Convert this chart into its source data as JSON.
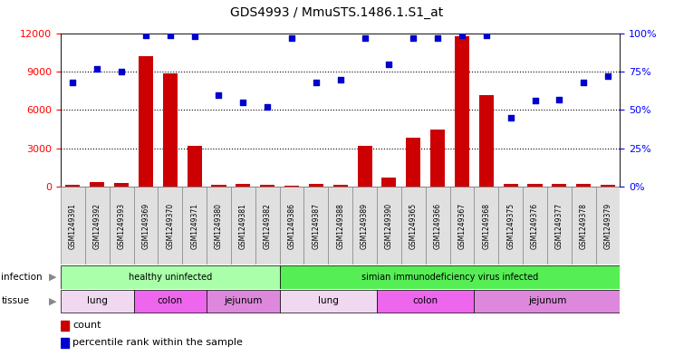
{
  "title": "GDS4993 / MmuSTS.1486.1.S1_at",
  "samples": [
    "GSM1249391",
    "GSM1249392",
    "GSM1249393",
    "GSM1249369",
    "GSM1249370",
    "GSM1249371",
    "GSM1249380",
    "GSM1249381",
    "GSM1249382",
    "GSM1249386",
    "GSM1249387",
    "GSM1249388",
    "GSM1249389",
    "GSM1249390",
    "GSM1249365",
    "GSM1249366",
    "GSM1249367",
    "GSM1249368",
    "GSM1249375",
    "GSM1249376",
    "GSM1249377",
    "GSM1249378",
    "GSM1249379"
  ],
  "counts": [
    120,
    350,
    250,
    10200,
    8900,
    3200,
    150,
    200,
    120,
    100,
    200,
    150,
    3200,
    700,
    3800,
    4500,
    11800,
    7200,
    200,
    200,
    200,
    200,
    150
  ],
  "percentiles": [
    68,
    77,
    75,
    99,
    99,
    98,
    60,
    55,
    52,
    97,
    68,
    70,
    97,
    80,
    97,
    97,
    99,
    99,
    45,
    56,
    57,
    68,
    72
  ],
  "inf_groups": [
    {
      "label": "healthy uninfected",
      "start": 0,
      "end": 9,
      "color": "#aaffaa"
    },
    {
      "label": "simian immunodeficiency virus infected",
      "start": 9,
      "end": 23,
      "color": "#55ee55"
    }
  ],
  "tis_groups": [
    {
      "label": "lung",
      "start": 0,
      "end": 3,
      "color": "#f0d8f0"
    },
    {
      "label": "colon",
      "start": 3,
      "end": 6,
      "color": "#ee66ee"
    },
    {
      "label": "jejunum",
      "start": 6,
      "end": 9,
      "color": "#dd88dd"
    },
    {
      "label": "lung",
      "start": 9,
      "end": 13,
      "color": "#f0d8f0"
    },
    {
      "label": "colon",
      "start": 13,
      "end": 17,
      "color": "#ee66ee"
    },
    {
      "label": "jejunum",
      "start": 17,
      "end": 23,
      "color": "#dd88dd"
    }
  ],
  "bar_color": "#cc0000",
  "dot_color": "#0000cc",
  "ylim_left": [
    0,
    12000
  ],
  "ylim_right": [
    0,
    100
  ],
  "yticks_left": [
    0,
    3000,
    6000,
    9000,
    12000
  ],
  "yticks_right": [
    0,
    25,
    50,
    75,
    100
  ],
  "bg_color": "#ffffff",
  "label_bg": "#e0e0e0"
}
